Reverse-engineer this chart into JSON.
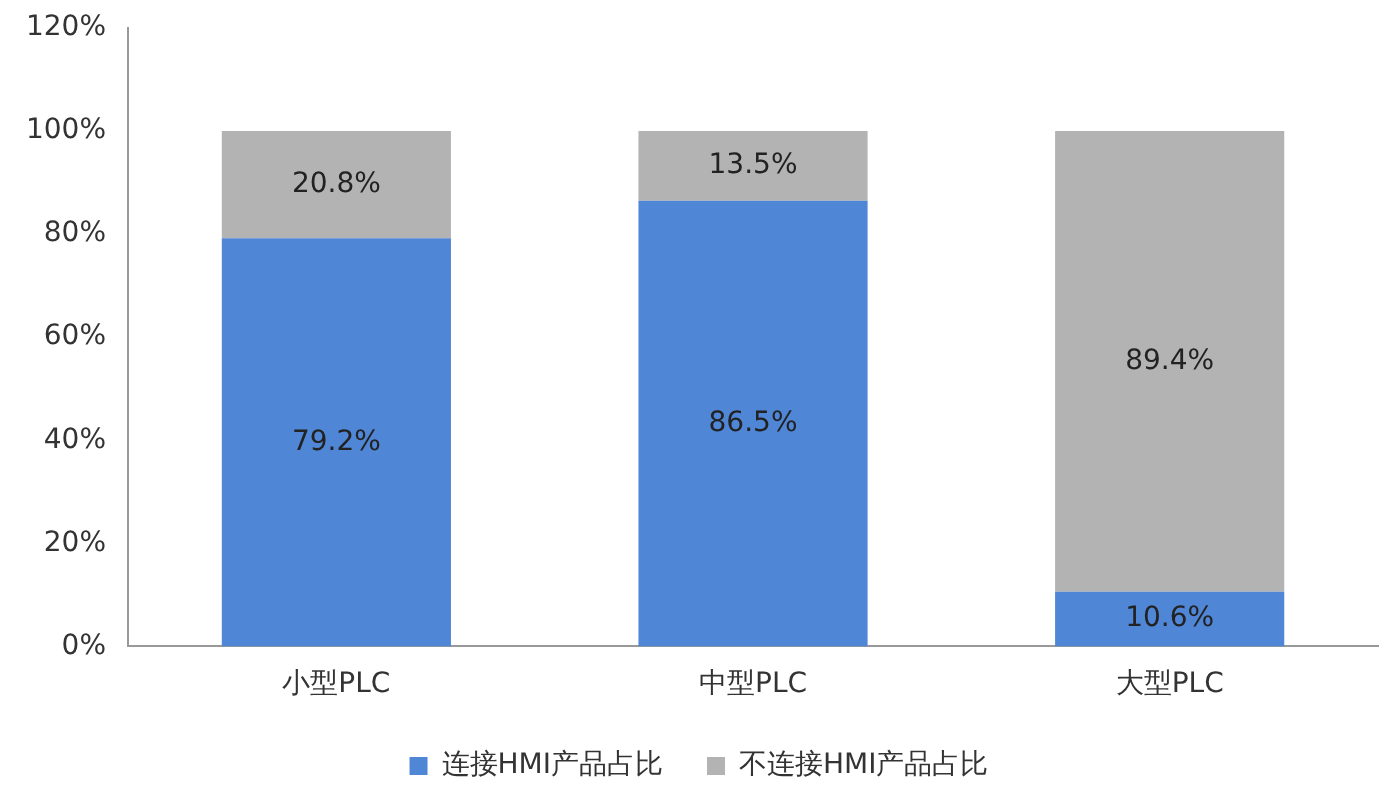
{
  "chart_data": {
    "type": "bar",
    "stacked": true,
    "categories": [
      "小型PLC",
      "中型PLC",
      "大型PLC"
    ],
    "series": [
      {
        "name": "连接HMI产品占比",
        "color": "#4f86d6",
        "values": [
          79.2,
          86.5,
          10.6
        ],
        "value_labels": [
          "79.2%",
          "86.5%",
          "10.6%"
        ]
      },
      {
        "name": "不连接HMI产品占比",
        "color": "#b3b3b3",
        "values": [
          20.8,
          13.5,
          89.4
        ],
        "value_labels": [
          "20.8%",
          "13.5%",
          "89.4%"
        ]
      }
    ],
    "ylim": [
      0,
      120
    ],
    "yticks": [
      {
        "value": 0,
        "label": "0%"
      },
      {
        "value": 20,
        "label": "20%"
      },
      {
        "value": 40,
        "label": "40%"
      },
      {
        "value": 60,
        "label": "60%"
      },
      {
        "value": 80,
        "label": "80%"
      },
      {
        "value": 100,
        "label": "100%"
      },
      {
        "value": 120,
        "label": "120%"
      }
    ],
    "grid": false,
    "legend": "bottom"
  }
}
